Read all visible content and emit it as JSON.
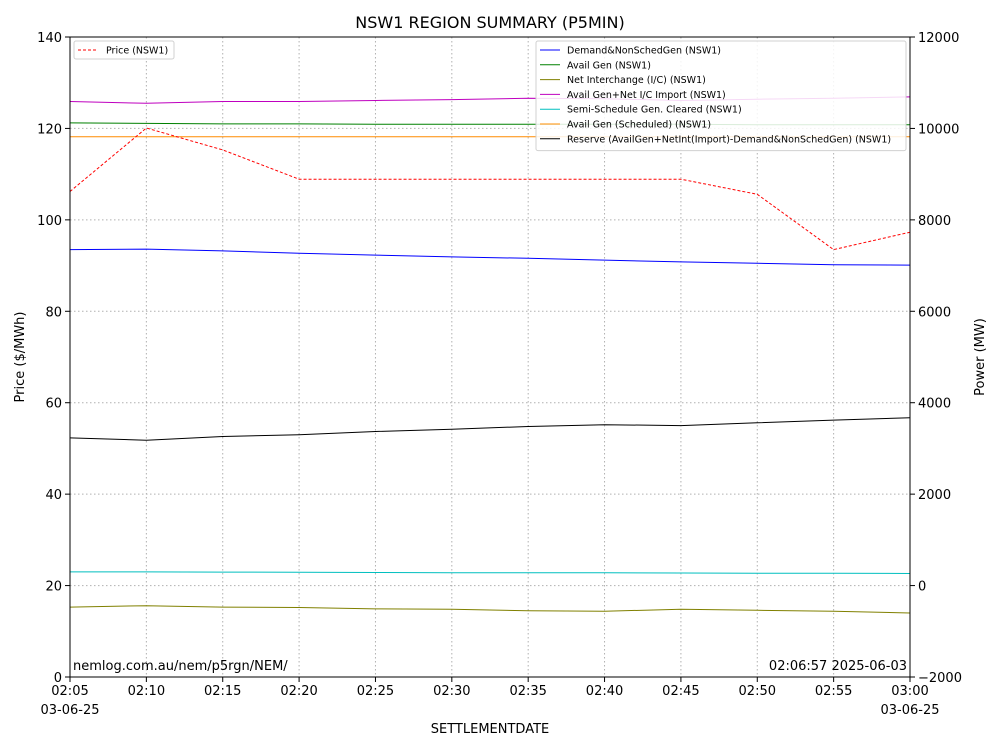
{
  "chart_data": {
    "type": "line",
    "title": "NSW1 REGION SUMMARY (P5MIN)",
    "xlabel": "SETTLEMENTDATE",
    "ylabel_left": "Price ($/MWh)",
    "ylabel_right": "Power (MW)",
    "x": [
      "02:05",
      "02:10",
      "02:15",
      "02:20",
      "02:25",
      "02:30",
      "02:35",
      "02:40",
      "02:45",
      "02:50",
      "02:55",
      "03:00"
    ],
    "x_date_left": "03-06-25",
    "x_date_right": "03-06-25",
    "ylim_left": [
      0,
      140
    ],
    "yticks_left": [
      "0",
      "20",
      "40",
      "60",
      "80",
      "100",
      "120",
      "140"
    ],
    "ylim_right": [
      -2000,
      12000
    ],
    "yticks_right": [
      "−2000",
      "0",
      "2000",
      "4000",
      "6000",
      "8000",
      "10000",
      "12000"
    ],
    "grid": true,
    "left_series": [
      {
        "name": "Price (NSW1)",
        "color": "#ff0000",
        "dashed": true,
        "values": [
          106.2,
          120.1,
          115.3,
          108.9,
          108.9,
          108.9,
          108.9,
          108.9,
          108.9,
          105.6,
          93.5,
          97.3
        ]
      }
    ],
    "right_series": [
      {
        "name": "Demand&NonSchedGen (NSW1)",
        "color": "#0000ff",
        "values": [
          7350,
          7360,
          7320,
          7270,
          7230,
          7190,
          7160,
          7120,
          7080,
          7050,
          7020,
          7010
        ]
      },
      {
        "name": "Avail Gen (NSW1)",
        "color": "#008000",
        "values": [
          10120,
          10110,
          10100,
          10100,
          10090,
          10090,
          10090,
          10090,
          10090,
          10080,
          10080,
          10080
        ]
      },
      {
        "name": "Net Interchange (I/C) (NSW1)",
        "color": "#808000",
        "values": [
          -470,
          -440,
          -470,
          -480,
          -510,
          -520,
          -550,
          -560,
          -520,
          -540,
          -560,
          -600
        ]
      },
      {
        "name": "Avail Gen+Net I/C Import (NSW1)",
        "color": "#bf00bf",
        "values": [
          10590,
          10550,
          10590,
          10590,
          10610,
          10630,
          10660,
          10650,
          10610,
          10640,
          10660,
          10690
        ]
      },
      {
        "name": "Semi-Schedule Gen. Cleared (NSW1)",
        "color": "#00bfbf",
        "values": [
          300,
          300,
          295,
          290,
          285,
          280,
          280,
          280,
          275,
          270,
          270,
          265
        ]
      },
      {
        "name": "Avail Gen (Scheduled) (NSW1)",
        "color": "#ff8c00",
        "values": [
          9820,
          9820,
          9820,
          9820,
          9820,
          9820,
          9820,
          9820,
          9820,
          9820,
          9820,
          9820
        ]
      },
      {
        "name": "Reserve (AvailGen+NetInt(Import)-Demand&NonSchedGen) (NSW1)",
        "color": "#000000",
        "values": [
          3230,
          3180,
          3260,
          3300,
          3370,
          3420,
          3480,
          3520,
          3500,
          3560,
          3620,
          3670
        ]
      }
    ],
    "legend_left_placement": "upper-left",
    "legend_right_placement": "upper-right",
    "annotation_left": "nemlog.com.au/nem/p5rgn/NEM/",
    "annotation_right": "02:06:57 2025-06-03"
  }
}
